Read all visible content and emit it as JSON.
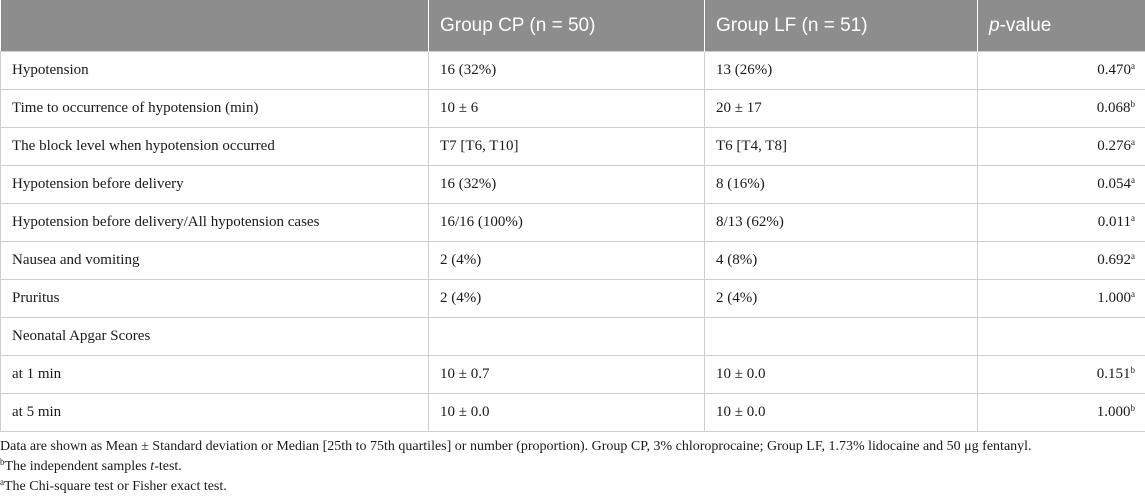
{
  "header": {
    "col1": "",
    "col2": "Group CP (n = 50)",
    "col3": "Group LF (n = 51)",
    "col4_italic": "p",
    "col4_rest": "-value"
  },
  "rows": [
    {
      "label": "Hypotension",
      "cp": "16 (32%)",
      "lf": "13 (26%)",
      "p": "0.470",
      "sup": "a"
    },
    {
      "label": "Time to occurrence of hypotension (min)",
      "cp": "10 ± 6",
      "lf": "20 ± 17",
      "p": "0.068",
      "sup": "b"
    },
    {
      "label": "The block level when hypotension occurred",
      "cp": "T7 [T6, T10]",
      "lf": "T6 [T4, T8]",
      "p": "0.276",
      "sup": "a"
    },
    {
      "label": "Hypotension before delivery",
      "cp": "16 (32%)",
      "lf": "8 (16%)",
      "p": "0.054",
      "sup": "a"
    },
    {
      "label": "Hypotension before delivery/All hypotension cases",
      "cp": "16/16 (100%)",
      "lf": "8/13 (62%)",
      "p": "0.011",
      "sup": "a"
    },
    {
      "label": "Nausea and vomiting",
      "cp": "2 (4%)",
      "lf": "4 (8%)",
      "p": "0.692",
      "sup": "a"
    },
    {
      "label": "Pruritus",
      "cp": "2 (4%)",
      "lf": "2 (4%)",
      "p": "1.000",
      "sup": "a"
    },
    {
      "label": "Neonatal Apgar Scores",
      "cp": "",
      "lf": "",
      "p": "",
      "sup": ""
    },
    {
      "label": "at 1 min",
      "cp": "10 ± 0.7",
      "lf": "10 ± 0.0",
      "p": "0.151",
      "sup": "b"
    },
    {
      "label": "at 5 min",
      "cp": "10 ± 0.0",
      "lf": "10 ± 0.0",
      "p": "1.000",
      "sup": "b"
    }
  ],
  "footnotes": {
    "main": "Data are shown as Mean ± Standard deviation or Median [25th to 75th quartiles] or number (proportion). Group CP, 3% chloroprocaine; Group LF, 1.73% lidocaine and 50 μg fentanyl.",
    "b_sup": "b",
    "b_pre": "The independent samples ",
    "b_italic": "t",
    "b_post": "-test.",
    "a_sup": "a",
    "a_text": "The Chi-square test or Fisher exact test."
  }
}
